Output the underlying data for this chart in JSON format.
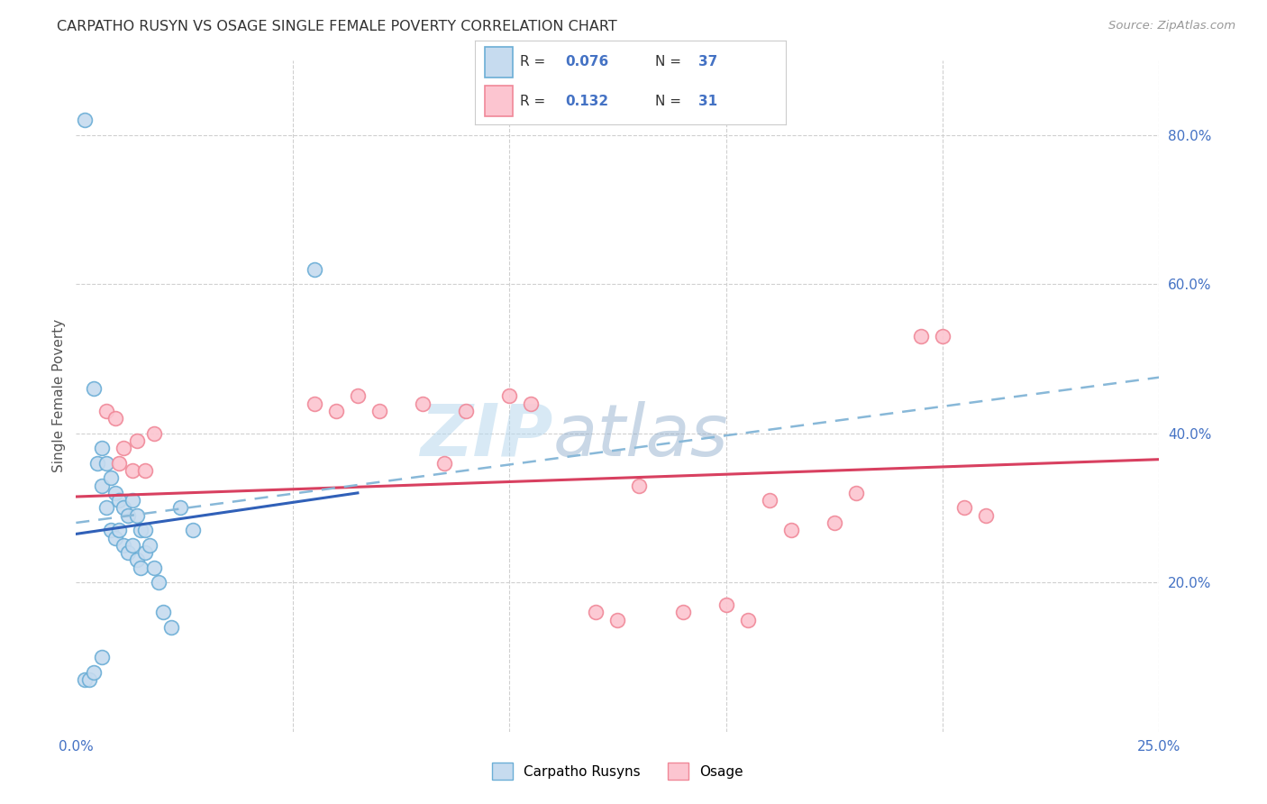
{
  "title": "CARPATHO RUSYN VS OSAGE SINGLE FEMALE POVERTY CORRELATION CHART",
  "source": "Source: ZipAtlas.com",
  "ylabel": "Single Female Poverty",
  "legend_blue_r": "0.076",
  "legend_blue_n": "37",
  "legend_pink_r": "0.132",
  "legend_pink_n": "31",
  "legend_blue_label": "Carpatho Rusyns",
  "legend_pink_label": "Osage",
  "xlim": [
    0.0,
    0.25
  ],
  "ylim": [
    0.0,
    0.9
  ],
  "right_yticks": [
    0.2,
    0.4,
    0.6,
    0.8
  ],
  "right_ytick_labels": [
    "20.0%",
    "40.0%",
    "60.0%",
    "80.0%"
  ],
  "blue_scatter_x": [
    0.002,
    0.004,
    0.005,
    0.006,
    0.006,
    0.007,
    0.007,
    0.008,
    0.008,
    0.009,
    0.009,
    0.01,
    0.01,
    0.011,
    0.011,
    0.012,
    0.012,
    0.013,
    0.013,
    0.014,
    0.014,
    0.015,
    0.015,
    0.016,
    0.016,
    0.017,
    0.018,
    0.019,
    0.02,
    0.022,
    0.024,
    0.027,
    0.055,
    0.002,
    0.003,
    0.004,
    0.006
  ],
  "blue_scatter_y": [
    0.82,
    0.46,
    0.36,
    0.38,
    0.33,
    0.36,
    0.3,
    0.34,
    0.27,
    0.32,
    0.26,
    0.31,
    0.27,
    0.3,
    0.25,
    0.29,
    0.24,
    0.31,
    0.25,
    0.29,
    0.23,
    0.27,
    0.22,
    0.27,
    0.24,
    0.25,
    0.22,
    0.2,
    0.16,
    0.14,
    0.3,
    0.27,
    0.62,
    0.07,
    0.07,
    0.08,
    0.1
  ],
  "pink_scatter_x": [
    0.007,
    0.009,
    0.01,
    0.011,
    0.013,
    0.014,
    0.016,
    0.018,
    0.055,
    0.06,
    0.065,
    0.07,
    0.08,
    0.085,
    0.09,
    0.1,
    0.105,
    0.13,
    0.16,
    0.165,
    0.175,
    0.18,
    0.195,
    0.205,
    0.21,
    0.15,
    0.155,
    0.12,
    0.125,
    0.14,
    0.2
  ],
  "pink_scatter_y": [
    0.43,
    0.42,
    0.36,
    0.38,
    0.35,
    0.39,
    0.35,
    0.4,
    0.44,
    0.43,
    0.45,
    0.43,
    0.44,
    0.36,
    0.43,
    0.45,
    0.44,
    0.33,
    0.31,
    0.27,
    0.28,
    0.32,
    0.53,
    0.3,
    0.29,
    0.17,
    0.15,
    0.16,
    0.15,
    0.16,
    0.53
  ],
  "blue_trend_x": [
    0.0,
    0.065
  ],
  "blue_trend_y": [
    0.265,
    0.32
  ],
  "pink_trend_x": [
    0.0,
    0.25
  ],
  "pink_trend_y": [
    0.315,
    0.365
  ],
  "blue_dashed_trend_x": [
    0.0,
    0.25
  ],
  "blue_dashed_trend_y": [
    0.28,
    0.475
  ],
  "watermark_zip": "ZIP",
  "watermark_atlas": "atlas",
  "background_color": "#ffffff",
  "blue_color": "#6baed6",
  "blue_face_color": "#c6dbef",
  "pink_color": "#f08898",
  "pink_face_color": "#fcc5d0",
  "grid_color": "#d0d0d0",
  "title_color": "#333333",
  "axis_color": "#4472c4"
}
